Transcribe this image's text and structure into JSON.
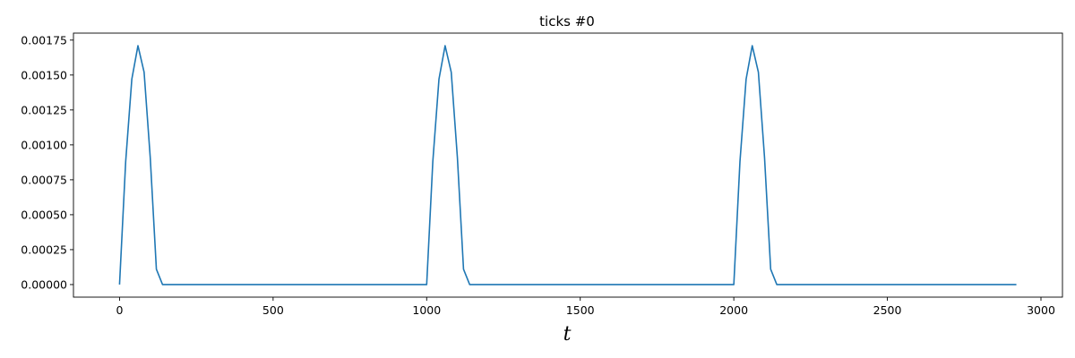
{
  "chart_data": {
    "type": "line",
    "title": "ticks #0",
    "xlabel": "t",
    "ylabel": "",
    "xlim": [
      -150,
      3070
    ],
    "ylim": [
      -9e-05,
      0.0018
    ],
    "x_ticks": [
      0,
      500,
      1000,
      1500,
      2000,
      2500,
      3000
    ],
    "x_tick_labels": [
      "0",
      "500",
      "1000",
      "1500",
      "2000",
      "2500",
      "3000"
    ],
    "y_ticks": [
      0,
      0.00025,
      0.0005,
      0.00075,
      0.001,
      0.00125,
      0.0015,
      0.00175
    ],
    "y_tick_labels": [
      "0.00000",
      "0.00025",
      "0.00050",
      "0.00075",
      "0.00100",
      "0.00125",
      "0.00150",
      "0.00175"
    ],
    "grid": false,
    "series": [
      {
        "color": "#1f77b4",
        "x": [
          0,
          20,
          40,
          60,
          80,
          100,
          120,
          140,
          1000,
          1020,
          1040,
          1060,
          1080,
          1100,
          1120,
          1140,
          2000,
          2020,
          2040,
          2060,
          2080,
          2100,
          2120,
          2140,
          2920
        ],
        "y": [
          0,
          0.00088,
          0.00147,
          0.00171,
          0.00152,
          0.00091,
          0.00011,
          0,
          0,
          0.00088,
          0.00147,
          0.00171,
          0.00152,
          0.00091,
          0.00011,
          0,
          0,
          0.00088,
          0.00147,
          0.00171,
          0.00152,
          0.00091,
          0.00011,
          0,
          0
        ]
      }
    ]
  }
}
